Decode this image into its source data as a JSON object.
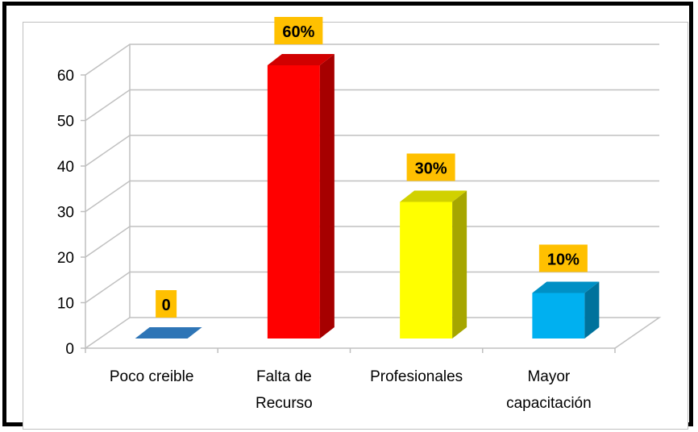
{
  "chart_data": {
    "type": "bar",
    "three_d": true,
    "categories": [
      "Poco creible",
      "Falta de\nRecurso",
      "Profesionales",
      "Mayor\ncapacitación"
    ],
    "values": [
      0,
      60,
      30,
      10
    ],
    "data_labels": [
      "0",
      "60%",
      "30%",
      "10%"
    ],
    "bar_colors": [
      "#2E75B6",
      "#FF0000",
      "#FFFF00",
      "#00B0F0"
    ],
    "label_box_color": "#FFC000",
    "ylim": [
      0,
      60
    ],
    "yticks": [
      0,
      10,
      20,
      30,
      40,
      50,
      60
    ],
    "grid": true,
    "legend": "none",
    "title": "",
    "xlabel": "",
    "ylabel": ""
  }
}
